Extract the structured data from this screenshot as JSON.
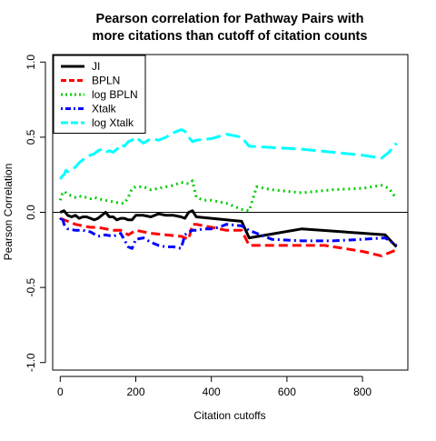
{
  "chart_data": {
    "type": "line",
    "title_lines": [
      "Pearson correlation for Pathway Pairs with",
      "more citations than cutoff of citation counts"
    ],
    "xlabel": "Citation cutoffs",
    "ylabel": "Pearson Correlation",
    "xlim": [
      -20,
      920
    ],
    "ylim": [
      -1.05,
      1.05
    ],
    "x_ticks": [
      0,
      200,
      400,
      600,
      800
    ],
    "x_tick_labels": [
      "0",
      "200",
      "400",
      "600",
      "800"
    ],
    "y_ticks": [
      -1.0,
      -0.5,
      0.0,
      0.5,
      1.0
    ],
    "y_tick_labels": [
      "-1.0",
      "-0.5",
      "0.0",
      "0.5",
      "1.0"
    ],
    "reference_line_y": 0,
    "legend_position": "top-left",
    "grid": false,
    "series": [
      {
        "name": "JI",
        "color": "#000000",
        "dash": "solid",
        "x": [
          0,
          10,
          20,
          30,
          40,
          50,
          60,
          70,
          80,
          90,
          100,
          110,
          120,
          130,
          140,
          150,
          160,
          170,
          180,
          190,
          200,
          220,
          240,
          260,
          280,
          300,
          320,
          330,
          340,
          350,
          360,
          400,
          440,
          480,
          500,
          640,
          860,
          890
        ],
        "y": [
          0.0,
          0.01,
          -0.02,
          -0.03,
          -0.02,
          -0.04,
          -0.03,
          -0.03,
          -0.04,
          -0.05,
          -0.04,
          -0.02,
          0.0,
          -0.03,
          -0.03,
          -0.05,
          -0.04,
          -0.04,
          -0.05,
          -0.05,
          -0.02,
          -0.02,
          -0.03,
          -0.01,
          -0.02,
          -0.02,
          -0.03,
          -0.04,
          0.0,
          0.01,
          -0.03,
          -0.04,
          -0.05,
          -0.06,
          -0.17,
          -0.11,
          -0.15,
          -0.23
        ]
      },
      {
        "name": "BPLN",
        "color": "#ff0000",
        "dash": "dashed",
        "x": [
          0,
          20,
          40,
          60,
          80,
          100,
          120,
          140,
          160,
          180,
          200,
          240,
          280,
          320,
          340,
          350,
          360,
          400,
          440,
          480,
          500,
          600,
          700,
          800,
          850,
          870,
          890
        ],
        "y": [
          -0.04,
          -0.06,
          -0.08,
          -0.09,
          -0.1,
          -0.1,
          -0.11,
          -0.12,
          -0.12,
          -0.15,
          -0.12,
          -0.14,
          -0.15,
          -0.16,
          -0.18,
          -0.08,
          -0.08,
          -0.1,
          -0.12,
          -0.12,
          -0.22,
          -0.22,
          -0.22,
          -0.26,
          -0.29,
          -0.27,
          -0.25
        ]
      },
      {
        "name": "log BPLN",
        "color": "#00cd00",
        "dash": "dotted",
        "x": [
          0,
          5,
          10,
          20,
          30,
          40,
          50,
          60,
          70,
          80,
          90,
          100,
          120,
          140,
          160,
          170,
          180,
          190,
          200,
          220,
          240,
          260,
          280,
          300,
          320,
          340,
          350,
          360,
          380,
          400,
          440,
          480,
          500,
          520,
          560,
          640,
          720,
          800,
          850,
          870,
          890
        ],
        "y": [
          0.08,
          0.12,
          0.14,
          0.12,
          0.11,
          0.1,
          0.11,
          0.1,
          0.1,
          0.09,
          0.1,
          0.09,
          0.08,
          0.07,
          0.06,
          0.06,
          0.1,
          0.16,
          0.17,
          0.17,
          0.15,
          0.16,
          0.17,
          0.18,
          0.2,
          0.19,
          0.21,
          0.1,
          0.08,
          0.08,
          0.06,
          0.02,
          0.01,
          0.17,
          0.15,
          0.13,
          0.15,
          0.16,
          0.18,
          0.16,
          0.09
        ]
      },
      {
        "name": "Xtalk",
        "color": "#0000ff",
        "dash": "dotdash",
        "x": [
          0,
          5,
          10,
          20,
          40,
          60,
          80,
          100,
          120,
          140,
          160,
          180,
          190,
          200,
          220,
          240,
          260,
          280,
          300,
          320,
          330,
          340,
          350,
          360,
          380,
          400,
          420,
          440,
          480,
          500,
          560,
          640,
          720,
          800,
          860,
          890
        ],
        "y": [
          -0.05,
          -0.03,
          -0.08,
          -0.11,
          -0.12,
          -0.12,
          -0.13,
          -0.16,
          -0.15,
          -0.16,
          -0.14,
          -0.23,
          -0.24,
          -0.18,
          -0.17,
          -0.2,
          -0.22,
          -0.23,
          -0.23,
          -0.24,
          -0.15,
          -0.13,
          -0.12,
          -0.12,
          -0.11,
          -0.11,
          -0.1,
          -0.08,
          -0.09,
          -0.12,
          -0.18,
          -0.19,
          -0.19,
          -0.18,
          -0.17,
          -0.22
        ]
      },
      {
        "name": "log Xtalk",
        "color": "#00ffff",
        "dash": "longdash",
        "x": [
          0,
          5,
          10,
          15,
          20,
          30,
          40,
          50,
          60,
          70,
          80,
          90,
          100,
          110,
          120,
          130,
          140,
          150,
          160,
          170,
          180,
          190,
          200,
          220,
          240,
          260,
          280,
          300,
          320,
          330,
          340,
          350,
          360,
          400,
          440,
          480,
          500,
          640,
          720,
          800,
          850,
          870,
          890
        ],
        "y": [
          0.22,
          0.24,
          0.25,
          0.28,
          0.27,
          0.29,
          0.3,
          0.33,
          0.35,
          0.37,
          0.38,
          0.39,
          0.41,
          0.42,
          0.4,
          0.41,
          0.4,
          0.42,
          0.45,
          0.44,
          0.47,
          0.48,
          0.5,
          0.46,
          0.49,
          0.48,
          0.5,
          0.53,
          0.55,
          0.54,
          0.5,
          0.47,
          0.48,
          0.49,
          0.52,
          0.5,
          0.44,
          0.42,
          0.4,
          0.38,
          0.36,
          0.4,
          0.46
        ]
      }
    ]
  }
}
